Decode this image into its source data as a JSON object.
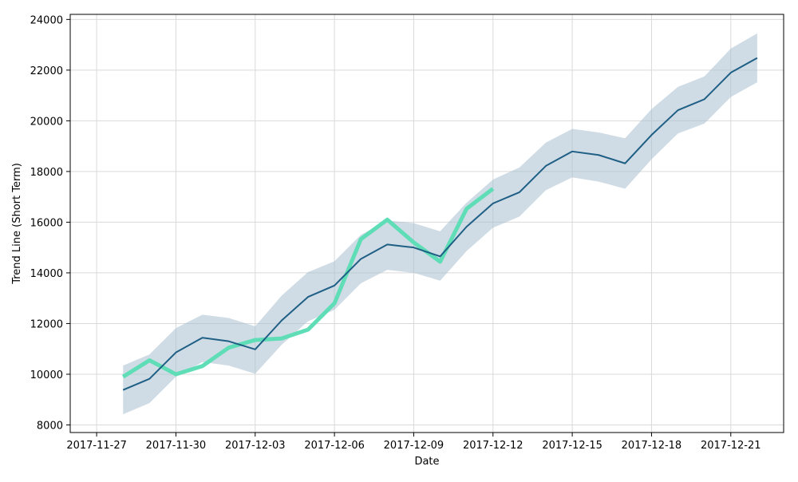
{
  "chart_data": {
    "type": "line",
    "xlabel": "Date",
    "ylabel": "Trend Line (Short Term)",
    "x_ticks": [
      "2017-11-27",
      "2017-11-30",
      "2017-12-03",
      "2017-12-06",
      "2017-12-09",
      "2017-12-12",
      "2017-12-15",
      "2017-12-18",
      "2017-12-21"
    ],
    "y_ticks": [
      8000,
      10000,
      12000,
      14000,
      16000,
      18000,
      20000,
      22000,
      24000
    ],
    "xlim": [
      "2017-11-26",
      "2017-12-23"
    ],
    "ylim": [
      7700,
      24200
    ],
    "grid": true,
    "legend": false,
    "colors": {
      "trend": "#1f5f85",
      "band": "#a8c0cf",
      "actual": "#5fddb6"
    },
    "series": [
      {
        "x": [
          "2017-11-28",
          "2017-11-29",
          "2017-11-30",
          "2017-12-01",
          "2017-12-02",
          "2017-12-03",
          "2017-12-04",
          "2017-12-05",
          "2017-12-06",
          "2017-12-07",
          "2017-12-08",
          "2017-12-09",
          "2017-12-10",
          "2017-12-11",
          "2017-12-12",
          "2017-12-13",
          "2017-12-14",
          "2017-12-15",
          "2017-12-16",
          "2017-12-17",
          "2017-12-18",
          "2017-12-19",
          "2017-12-20",
          "2017-12-21",
          "2017-12-22"
        ],
        "values": [
          9380,
          9820,
          10860,
          11440,
          11300,
          10980,
          12120,
          13050,
          13500,
          14550,
          15120,
          15000,
          14650,
          15820,
          16740,
          17180,
          18220,
          18790,
          18650,
          18320,
          19440,
          20420,
          20850,
          21900,
          22480
        ],
        "lower": [
          8420,
          8860,
          9900,
          10480,
          10340,
          10020,
          11160,
          12090,
          12540,
          13590,
          14120,
          14000,
          13690,
          14860,
          15780,
          16220,
          17260,
          17770,
          17600,
          17320,
          18480,
          19500,
          19890,
          20940,
          21520
        ],
        "upper": [
          10340,
          10780,
          11820,
          12350,
          12220,
          11890,
          13100,
          14030,
          14460,
          15500,
          16070,
          15960,
          15640,
          16770,
          17680,
          18160,
          19140,
          19680,
          19540,
          19310,
          20460,
          21340,
          21750,
          22850,
          23450
        ]
      },
      {
        "x": [
          "2017-11-28",
          "2017-11-29",
          "2017-11-30",
          "2017-12-01",
          "2017-12-02",
          "2017-12-03",
          "2017-12-04",
          "2017-12-05",
          "2017-12-06",
          "2017-12-07",
          "2017-12-08",
          "2017-12-09",
          "2017-12-10",
          "2017-12-11",
          "2017-12-12"
        ],
        "values": [
          9900,
          10550,
          10000,
          10320,
          11050,
          11350,
          11410,
          11760,
          12800,
          15330,
          16100,
          15200,
          14440,
          16530,
          17320
        ]
      }
    ]
  }
}
